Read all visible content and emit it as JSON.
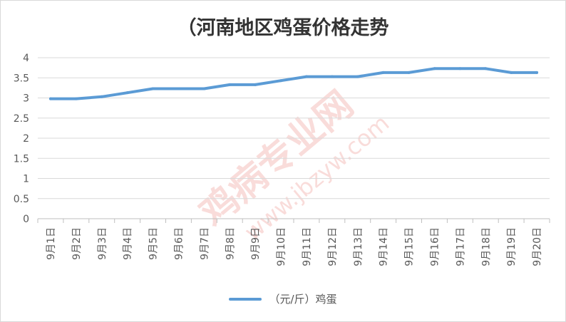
{
  "chart_data": {
    "type": "line",
    "title": "（河南地区鸡蛋价格走势",
    "categories": [
      "9月1日",
      "9月2日",
      "9月3日",
      "9月4日",
      "9月5日",
      "9月6日",
      "9月7日",
      "9月8日",
      "9月9日",
      "9月10日",
      "9月11日",
      "9月12日",
      "9月13日",
      "9月14日",
      "9月15日",
      "9月16日",
      "9月17日",
      "9月18日",
      "9月19日",
      "9月20日"
    ],
    "series": [
      {
        "name": "（元/斤）鸡蛋",
        "color": "#5b9bd5",
        "values": [
          2.98,
          2.98,
          3.03,
          3.13,
          3.23,
          3.23,
          3.23,
          3.33,
          3.33,
          3.43,
          3.53,
          3.53,
          3.53,
          3.63,
          3.63,
          3.73,
          3.73,
          3.73,
          3.63,
          3.63
        ]
      }
    ],
    "ylim": [
      0,
      4
    ],
    "yticks": [
      "0",
      "0.5",
      "1",
      "1.5",
      "2",
      "2.5",
      "3",
      "3.5",
      "4"
    ],
    "grid": true,
    "legend_position": "bottom"
  },
  "watermark": "鸡病专业网 www.jbzyw.com"
}
